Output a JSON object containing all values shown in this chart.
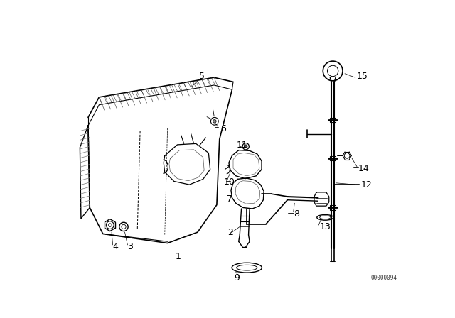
{
  "bg_color": "#ffffff",
  "line_color": "#000000",
  "fig_width": 6.4,
  "fig_height": 4.48,
  "dpi": 100,
  "watermark": "00000094"
}
